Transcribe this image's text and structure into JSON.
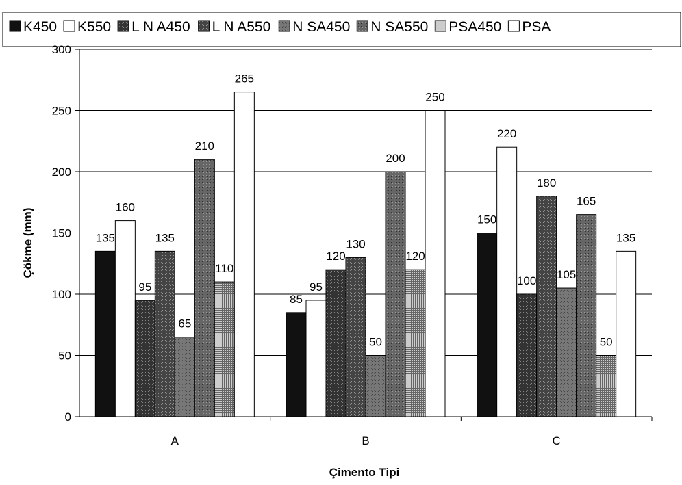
{
  "chart_data": {
    "type": "bar",
    "title": "",
    "xlabel": "Çimento Tipi",
    "ylabel": "Çökme (mm)",
    "ylim": [
      0,
      300
    ],
    "yticks": [
      0,
      50,
      100,
      150,
      200,
      250,
      300
    ],
    "ytick_labels": [
      "0",
      "50",
      "100",
      "150",
      "200",
      "250",
      "300"
    ],
    "grid": true,
    "legend_position": "top",
    "categories": [
      "A",
      "B",
      "C"
    ],
    "series": [
      {
        "name": "K450",
        "color": "#111111",
        "pattern": "solid",
        "values": [
          135,
          85,
          150
        ]
      },
      {
        "name": "K550",
        "color": "#ffffff",
        "pattern": "solid",
        "values": [
          160,
          95,
          220
        ]
      },
      {
        "name": "L N A450",
        "color": "#333333",
        "pattern": "dots",
        "values": [
          95,
          120,
          100
        ]
      },
      {
        "name": "L N A550",
        "color": "#444444",
        "pattern": "dots",
        "values": [
          135,
          130,
          180
        ]
      },
      {
        "name": "N SA450",
        "color": "#777777",
        "pattern": "dots",
        "values": [
          65,
          50,
          105
        ]
      },
      {
        "name": "N SA550",
        "color": "#666666",
        "pattern": "dots",
        "values": [
          210,
          200,
          165
        ]
      },
      {
        "name": "PSA450",
        "color": "#aaaaaa",
        "pattern": "grid",
        "values": [
          110,
          120,
          50
        ]
      },
      {
        "name": "PSA",
        "color": "#ffffff",
        "pattern": "solid",
        "values": [
          265,
          250,
          135
        ]
      }
    ]
  }
}
